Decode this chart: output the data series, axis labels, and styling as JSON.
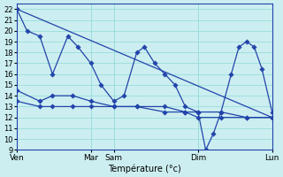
{
  "background_color": "#cceef0",
  "grid_color": "#99dddd",
  "line_color": "#2244aa",
  "xlabel": "Température (°c)",
  "ylim": [
    9,
    22.5
  ],
  "xlim": [
    0,
    1
  ],
  "xtick_positions": [
    0.0,
    0.29,
    0.38,
    0.71,
    1.0
  ],
  "xtick_labels": [
    "Ven",
    "Mar",
    "Sam",
    "Dim",
    "Lun"
  ],
  "vlines": [
    0.0,
    0.29,
    0.38,
    0.71,
    1.0
  ],
  "line_osc": {
    "x": [
      0.0,
      0.04,
      0.09,
      0.14,
      0.2,
      0.24,
      0.29,
      0.33,
      0.38,
      0.42,
      0.47,
      0.5,
      0.54,
      0.58,
      0.62,
      0.66,
      0.71,
      0.74,
      0.77,
      0.8,
      0.84,
      0.87,
      0.9,
      0.93,
      0.96,
      1.0
    ],
    "y": [
      22,
      20,
      19.5,
      16.0,
      19.5,
      18.5,
      17.0,
      15.0,
      13.5,
      14.0,
      18.0,
      18.5,
      17.0,
      16.0,
      15.0,
      13.0,
      12.5,
      9.0,
      10.5,
      12.5,
      16.0,
      18.5,
      19.0,
      18.5,
      16.5,
      12.5
    ]
  },
  "line_diag": {
    "x": [
      0.0,
      1.0
    ],
    "y": [
      22.0,
      12.0
    ]
  },
  "line_flat1": {
    "x": [
      0.0,
      0.09,
      0.14,
      0.22,
      0.29,
      0.38,
      0.47,
      0.58,
      0.66,
      0.71,
      0.8,
      0.9,
      1.0
    ],
    "y": [
      14.5,
      13.5,
      14.0,
      14.0,
      13.5,
      13.0,
      13.0,
      13.0,
      12.5,
      12.5,
      12.5,
      12.0,
      12.0
    ]
  },
  "line_flat2": {
    "x": [
      0.0,
      0.09,
      0.14,
      0.22,
      0.29,
      0.38,
      0.47,
      0.58,
      0.66,
      0.71,
      0.8,
      0.9,
      1.0
    ],
    "y": [
      13.5,
      13.0,
      13.0,
      13.0,
      13.0,
      13.0,
      13.0,
      12.5,
      12.5,
      12.0,
      12.0,
      12.0,
      12.0
    ]
  }
}
